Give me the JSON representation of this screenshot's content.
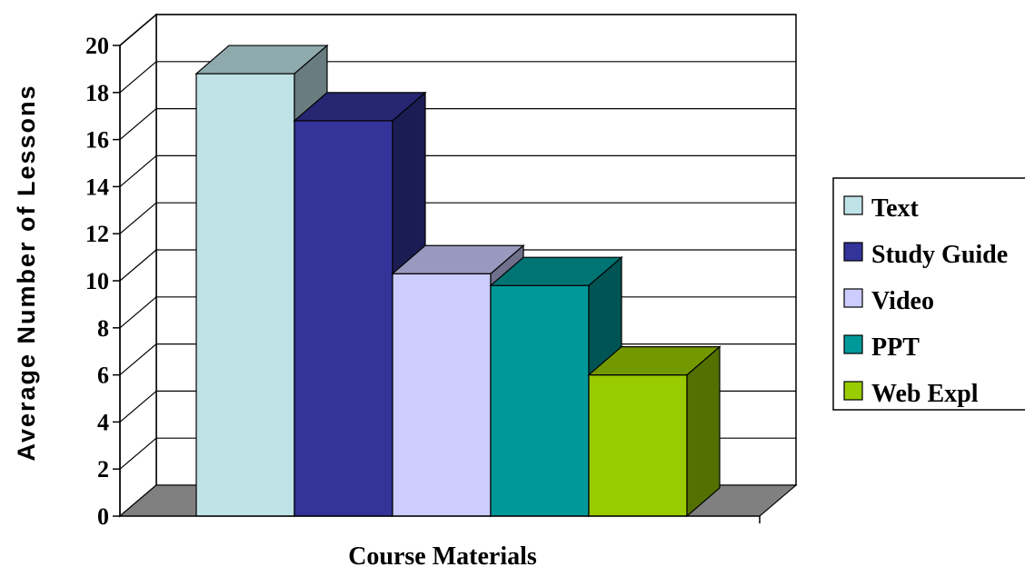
{
  "chart_data": {
    "type": "bar",
    "title": "",
    "xlabel": "Course Materials",
    "ylabel": "Average Number of Lessons",
    "ylim": [
      0,
      20
    ],
    "yticks": [
      0,
      2,
      4,
      6,
      8,
      10,
      12,
      14,
      16,
      18,
      20
    ],
    "grid": true,
    "legend_position": "right",
    "series": [
      {
        "name": "Text",
        "value": 18.8,
        "color": "#BFE2E6"
      },
      {
        "name": "Study Guide",
        "value": 16.8,
        "color": "#333399"
      },
      {
        "name": "Video",
        "value": 10.3,
        "color": "#CCCCFF"
      },
      {
        "name": "PPT",
        "value": 9.8,
        "color": "#009999"
      },
      {
        "name": "Web Expl",
        "value": 6.0,
        "color": "#99CC00"
      }
    ]
  }
}
